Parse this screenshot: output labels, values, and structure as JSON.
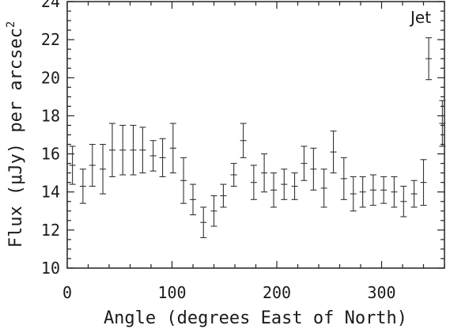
{
  "chart_data": {
    "type": "scatter",
    "title": "",
    "xlabel": "Angle (degrees East of North)",
    "ylabel": "Flux (μJy) per arcsec",
    "ylabel_superscript": "2",
    "xlim": [
      0,
      360
    ],
    "ylim": [
      10,
      24
    ],
    "x_ticks": [
      "0",
      "100",
      "200",
      "300"
    ],
    "y_ticks": [
      "10",
      "12",
      "14",
      "16",
      "18",
      "20",
      "22",
      "24"
    ],
    "grid": false,
    "annotations": [
      {
        "text": "Jet"
      }
    ],
    "series": [
      {
        "x": [
          5,
          15,
          24,
          34,
          43,
          53,
          63,
          72,
          82,
          91,
          101,
          111,
          120,
          130,
          140,
          149,
          159,
          168,
          178,
          188,
          197,
          207,
          217,
          226,
          235,
          245,
          254,
          264,
          273,
          282,
          292,
          302,
          312,
          321,
          331,
          340,
          345,
          358
        ],
        "y": [
          15.4,
          14.3,
          15.4,
          15.2,
          16.2,
          16.2,
          16.2,
          16.2,
          15.9,
          15.8,
          16.3,
          14.6,
          13.6,
          12.4,
          13.0,
          13.8,
          14.9,
          16.7,
          14.5,
          15.0,
          14.1,
          14.4,
          14.3,
          15.5,
          15.2,
          14.2,
          16.1,
          14.7,
          13.9,
          14.0,
          14.1,
          14.1,
          14.0,
          13.5,
          13.9,
          14.5,
          21.0,
          17.6
        ],
        "err": [
          1.0,
          0.9,
          1.1,
          1.3,
          1.4,
          1.3,
          1.3,
          1.2,
          0.8,
          1.0,
          1.3,
          1.2,
          0.8,
          0.8,
          0.8,
          0.6,
          0.6,
          0.9,
          0.9,
          1.0,
          0.9,
          0.8,
          0.7,
          0.9,
          1.1,
          1.0,
          1.1,
          1.1,
          0.9,
          0.8,
          0.8,
          0.7,
          0.8,
          0.8,
          0.7,
          1.2,
          1.1,
          1.2
        ]
      }
    ]
  }
}
